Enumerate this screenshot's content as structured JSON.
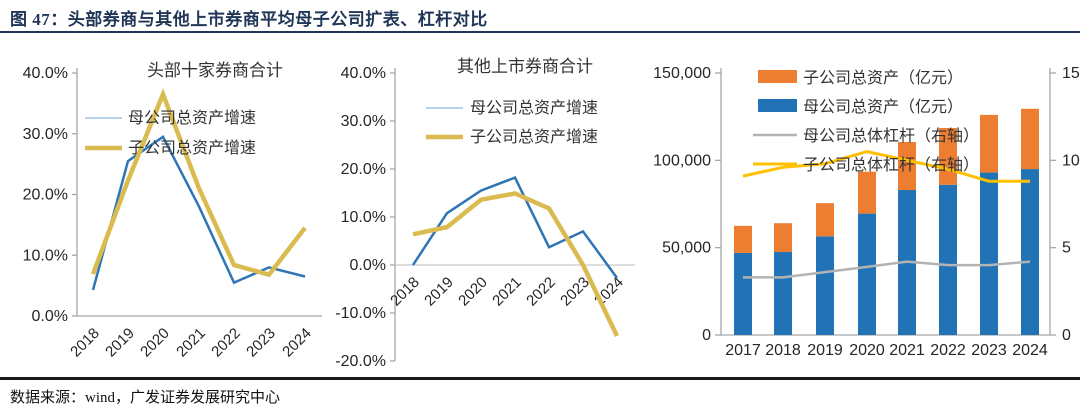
{
  "figure": {
    "title": "图 47：头部券商与其他上市券商平均母子公司扩表、杠杆对比",
    "source": "数据来源：wind，广发证券发展研究中心"
  },
  "colors": {
    "accent_navy": "#1F3656",
    "axis_gray": "#A6A6A6",
    "gridline_gray": "#C9C9C9",
    "line_blue": "#2E75B6",
    "line_gold": "#D9BB50",
    "legend_blue_light": "#9DC3E6",
    "bar_blue": "#2273B6",
    "bar_orange": "#ED7D31",
    "combo_gold": "#FFC000",
    "combo_gray": "#B3B3B3"
  },
  "chart_data": [
    {
      "type": "line",
      "title": "头部十家券商合计",
      "categories": [
        "2018",
        "2019",
        "2020",
        "2021",
        "2022",
        "2023",
        "2024"
      ],
      "series": [
        {
          "name": "母公司总资产增速",
          "color": "#2E75B6",
          "width": 2.5,
          "legend_color": "#9DC3E6",
          "legend_width": 1.5,
          "values": [
            4.3,
            25.5,
            29.5,
            18.0,
            5.5,
            8.0,
            6.5
          ]
        },
        {
          "name": "子公司总资产增速",
          "color": "#D9BB50",
          "width": 4.5,
          "values": [
            6.9,
            22.3,
            36.5,
            21.0,
            8.4,
            6.8,
            14.5
          ]
        }
      ],
      "ylim": [
        0,
        40
      ],
      "ytick_step": 10,
      "yformat": "percent1",
      "grid": false,
      "legend_position": "inside-top-left"
    },
    {
      "type": "line",
      "title": "其他上市券商合计",
      "categories": [
        "2018",
        "2019",
        "2020",
        "2021",
        "2022",
        "2023",
        "2024"
      ],
      "series": [
        {
          "name": "母公司总资产增速",
          "color": "#2E75B6",
          "width": 2.5,
          "legend_color": "#9DC3E6",
          "legend_width": 1.5,
          "values": [
            0.0,
            10.8,
            15.5,
            18.2,
            3.7,
            7.0,
            -2.7
          ]
        },
        {
          "name": "子公司总资产增速",
          "color": "#D9BB50",
          "width": 4.5,
          "values": [
            6.4,
            7.9,
            13.6,
            14.9,
            11.8,
            0.0,
            -14.8
          ]
        }
      ],
      "ylim": [
        -20,
        40
      ],
      "ytick_step": 10,
      "yformat": "percent1",
      "grid": "zero-line-only",
      "legend_position": "inside-top-left"
    },
    {
      "type": "bar-line",
      "title": "",
      "categories": [
        "2017",
        "2018",
        "2019",
        "2020",
        "2021",
        "2022",
        "2023",
        "2024"
      ],
      "bar_series": [
        {
          "name": "母公司总资产（亿元）",
          "color": "#2273B6",
          "axis": "left",
          "values": [
            47000,
            47500,
            56500,
            69500,
            83000,
            86000,
            93000,
            95000
          ]
        },
        {
          "name": "子公司总资产（亿元）",
          "color": "#ED7D31",
          "axis": "left",
          "stacked_on_previous": true,
          "values": [
            15500,
            16500,
            19000,
            24000,
            27500,
            32500,
            33000,
            34500
          ]
        }
      ],
      "line_series": [
        {
          "name": "母公司总体杠杆（右轴）",
          "color": "#B3B3B3",
          "axis": "right",
          "width": 2.5,
          "values": [
            3.3,
            3.3,
            3.6,
            3.9,
            4.2,
            4.0,
            4.0,
            4.2
          ]
        },
        {
          "name": "子公司总体杠杆（右轴）",
          "color": "#FFC000",
          "axis": "right",
          "width": 3,
          "values": [
            9.1,
            9.6,
            9.8,
            10.5,
            10.0,
            9.5,
            8.8,
            8.8
          ]
        }
      ],
      "legend_order": [
        "子公司总资产（亿元）",
        "母公司总资产（亿元）",
        "母公司总体杠杆（右轴）",
        "子公司总体杠杆（右轴）"
      ],
      "ylim_left": [
        0,
        150000
      ],
      "ytick_step_left": 50000,
      "ylim_right": [
        0,
        15
      ],
      "ytick_step_right": 5,
      "grid": false,
      "legend_position": "inside-top"
    }
  ]
}
